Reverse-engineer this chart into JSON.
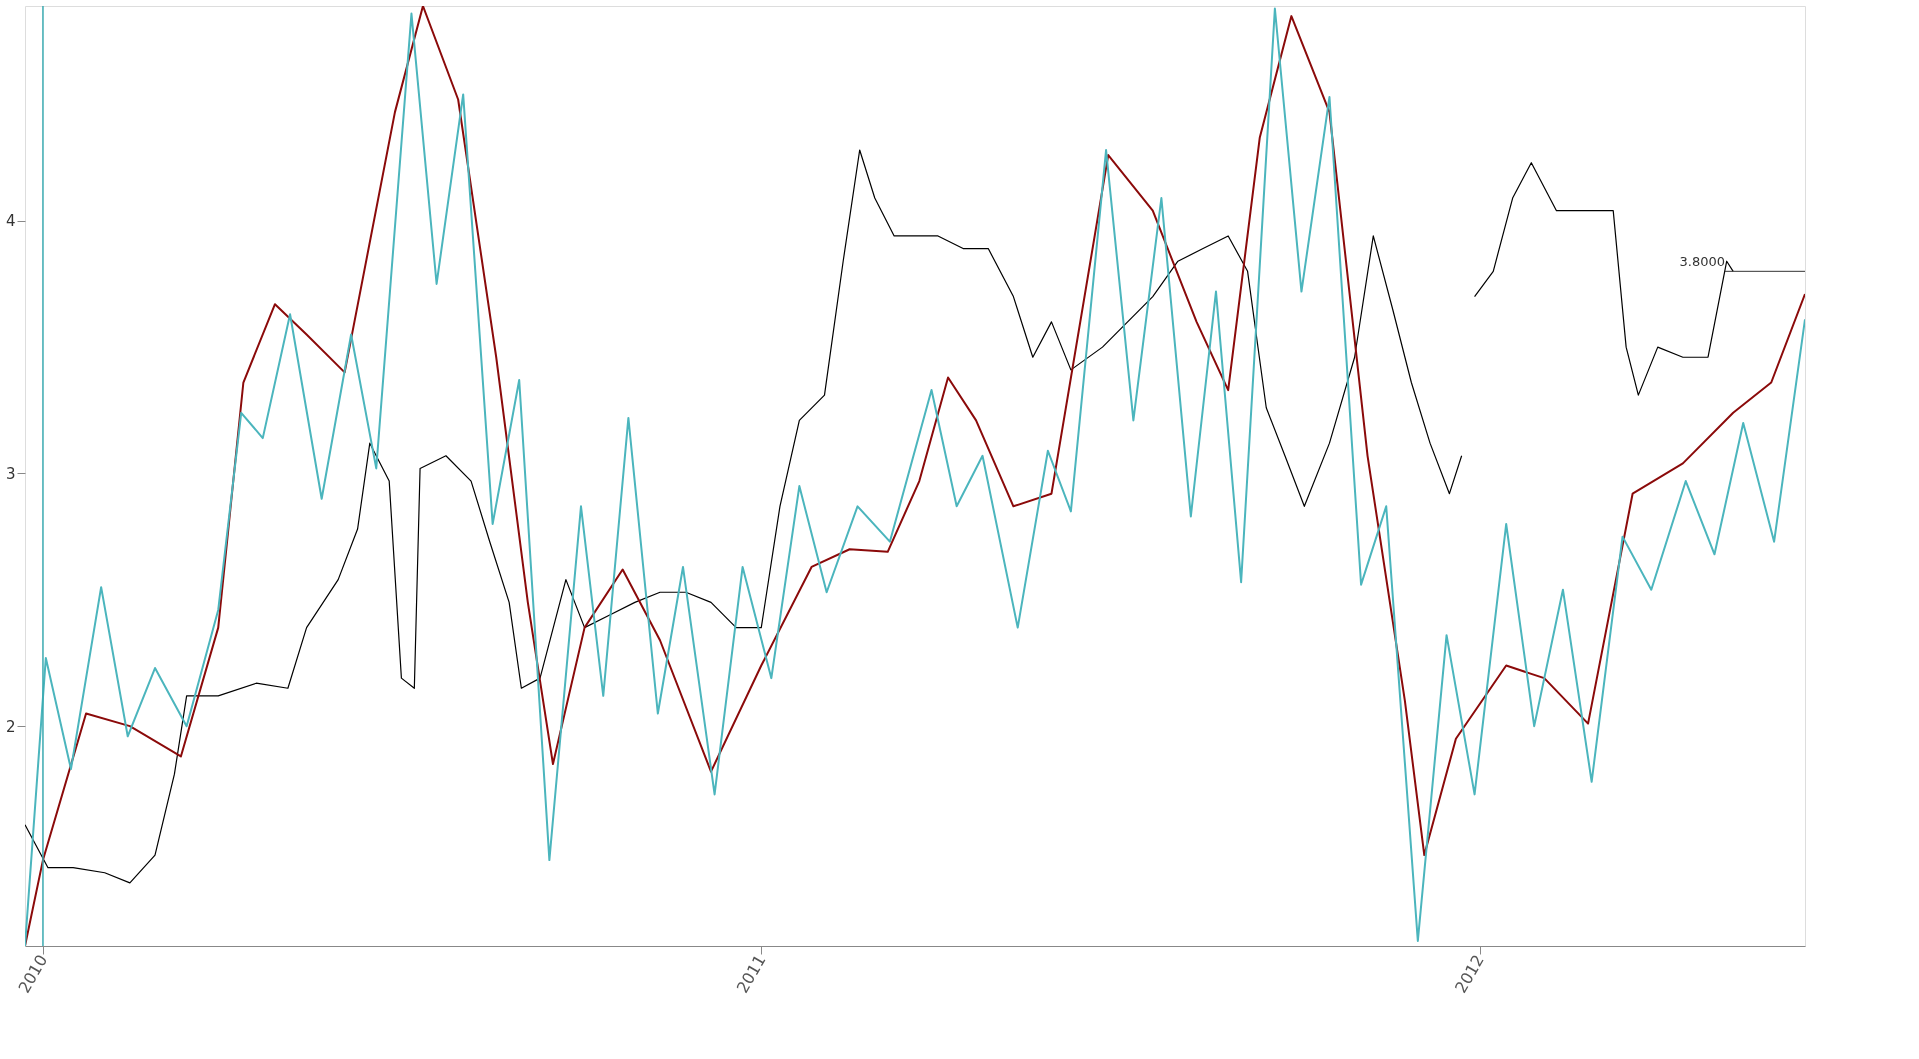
{
  "chart_data": {
    "type": "line",
    "xlim": [
      2009.975,
      2012.453
    ],
    "xticks": [
      2010,
      2011,
      2012
    ],
    "ylim": [
      1.13,
      4.85
    ],
    "yticks": [
      2,
      3,
      4
    ],
    "grid": false,
    "line_style": "solid",
    "marker": "none",
    "ref_lines": [
      {
        "axis": "x",
        "value": 2010,
        "label": null,
        "color": "#3aa9b0"
      },
      {
        "axis": "y",
        "value": 3.8,
        "label": "3.8000",
        "color": "#333333"
      }
    ],
    "series": [
      {
        "color": "#000000",
        "x": [
          2009.975,
          2010.007,
          2010.042,
          2010.086,
          2010.121,
          2010.156,
          2010.183,
          2010.2,
          2010.244,
          2010.297,
          2010.341,
          2010.367,
          2010.411,
          2010.438,
          2010.455,
          2010.482,
          2010.499,
          2010.517,
          2010.525,
          2010.561,
          2010.596,
          2010.622,
          2010.649,
          2010.666,
          2010.692,
          2010.728,
          2010.754,
          2010.789,
          2010.824,
          2010.859,
          2010.895,
          2010.93,
          2010.965,
          2011,
          2011.026,
          2011.053,
          2011.088,
          2011.114,
          2011.137,
          2011.158,
          2011.185,
          2011.211,
          2011.246,
          2011.281,
          2011.316,
          2011.351,
          2011.378,
          2011.404,
          2011.431,
          2011.475,
          2011.51,
          2011.545,
          2011.58,
          2011.615,
          2011.65,
          2011.677,
          2011.703,
          2011.729,
          2011.756,
          2011.791,
          2011.826,
          2011.852,
          2011.879,
          2011.905,
          2011.931,
          2011.958,
          2011.975,
          2011.984,
          2011.993,
          2012.019,
          2012.046,
          2012.072,
          2012.107,
          2012.142,
          2012.186,
          2012.204,
          2012.221,
          2012.248,
          2012.283,
          2012.318,
          2012.344,
          2012.353
        ],
        "values": [
          1.61,
          1.44,
          1.44,
          1.42,
          1.38,
          1.49,
          1.81,
          2.12,
          2.12,
          2.17,
          2.15,
          2.39,
          2.58,
          2.78,
          3.12,
          2.97,
          2.19,
          2.15,
          3.02,
          3.07,
          2.97,
          2.73,
          2.49,
          2.15,
          2.19,
          2.58,
          2.39,
          2.44,
          2.49,
          2.53,
          2.53,
          2.49,
          2.39,
          2.39,
          2.87,
          3.21,
          3.31,
          3.84,
          4.28,
          4.09,
          3.94,
          3.94,
          3.94,
          3.89,
          3.89,
          3.7,
          3.46,
          3.6,
          3.41,
          3.5,
          3.6,
          3.7,
          3.84,
          3.89,
          3.94,
          3.8,
          3.26,
          3.07,
          2.87,
          3.12,
          3.46,
          3.94,
          3.65,
          3.36,
          3.12,
          2.92,
          3.07,
          null,
          3.7,
          3.8,
          4.09,
          4.23,
          4.04,
          4.04,
          4.04,
          3.5,
          3.31,
          3.5,
          3.46,
          3.46,
          3.84,
          3.8
        ]
      },
      {
        "color": "#8b0a0a",
        "x": [
          2009.975,
          2010,
          2010.06,
          2010.121,
          2010.192,
          2010.244,
          2010.279,
          2010.323,
          2010.367,
          2010.42,
          2010.49,
          2010.529,
          2010.578,
          2010.631,
          2010.675,
          2010.71,
          2010.754,
          2010.807,
          2010.859,
          2010.93,
          2011,
          2011.07,
          2011.123,
          2011.176,
          2011.22,
          2011.26,
          2011.299,
          2011.351,
          2011.404,
          2011.483,
          2011.545,
          2011.606,
          2011.65,
          2011.694,
          2011.738,
          2011.791,
          2011.844,
          2011.896,
          2011.923,
          2011.967,
          2012.037,
          2012.09,
          2012.151,
          2012.213,
          2012.283,
          2012.353,
          2012.406,
          2012.453
        ],
        "values": [
          1.13,
          1.47,
          2.05,
          2.0,
          1.88,
          2.39,
          3.36,
          3.67,
          3.55,
          3.4,
          4.43,
          4.85,
          4.48,
          3.46,
          2.49,
          1.85,
          2.39,
          2.62,
          2.34,
          1.82,
          2.24,
          2.63,
          2.7,
          2.69,
          2.97,
          3.38,
          3.21,
          2.87,
          2.92,
          4.26,
          4.04,
          3.6,
          3.33,
          4.33,
          4.81,
          4.43,
          3.07,
          2.1,
          1.49,
          1.95,
          2.24,
          2.19,
          2.01,
          2.92,
          3.04,
          3.24,
          3.36,
          3.71
        ]
      },
      {
        "color": "#4bb5bd",
        "x": [
          2009.975,
          2010.004,
          2010.039,
          2010.081,
          2010.118,
          2010.156,
          2010.2,
          2010.244,
          2010.276,
          2010.306,
          2010.344,
          2010.388,
          2010.429,
          2010.464,
          2010.513,
          2010.548,
          2010.585,
          2010.626,
          2010.663,
          2010.705,
          2010.749,
          2010.78,
          2010.815,
          2010.856,
          2010.891,
          2010.935,
          2010.974,
          2011.014,
          2011.053,
          2011.091,
          2011.134,
          2011.179,
          2011.237,
          2011.272,
          2011.308,
          2011.357,
          2011.399,
          2011.431,
          2011.48,
          2011.518,
          2011.557,
          2011.598,
          2011.633,
          2011.668,
          2011.715,
          2011.752,
          2011.791,
          2011.835,
          2011.87,
          2011.914,
          2011.954,
          2011.993,
          2012.037,
          2012.076,
          2012.116,
          2012.156,
          2012.199,
          2012.239,
          2012.287,
          2012.327,
          2012.367,
          2012.41,
          2012.453
        ],
        "values": [
          1.13,
          2.27,
          1.83,
          2.55,
          1.96,
          2.23,
          2.0,
          2.46,
          3.24,
          3.14,
          3.63,
          2.9,
          3.55,
          3.02,
          4.82,
          3.75,
          4.5,
          2.8,
          3.37,
          1.47,
          2.87,
          2.12,
          3.22,
          2.05,
          2.63,
          1.73,
          2.63,
          2.19,
          2.95,
          2.53,
          2.87,
          2.73,
          3.33,
          2.87,
          3.07,
          2.39,
          3.09,
          2.85,
          4.28,
          3.21,
          4.09,
          2.83,
          3.72,
          2.57,
          4.84,
          3.72,
          4.49,
          2.56,
          2.87,
          1.15,
          2.36,
          1.73,
          2.8,
          2.0,
          2.54,
          1.78,
          2.75,
          2.54,
          2.97,
          2.68,
          3.2,
          2.73,
          3.61
        ]
      }
    ]
  }
}
